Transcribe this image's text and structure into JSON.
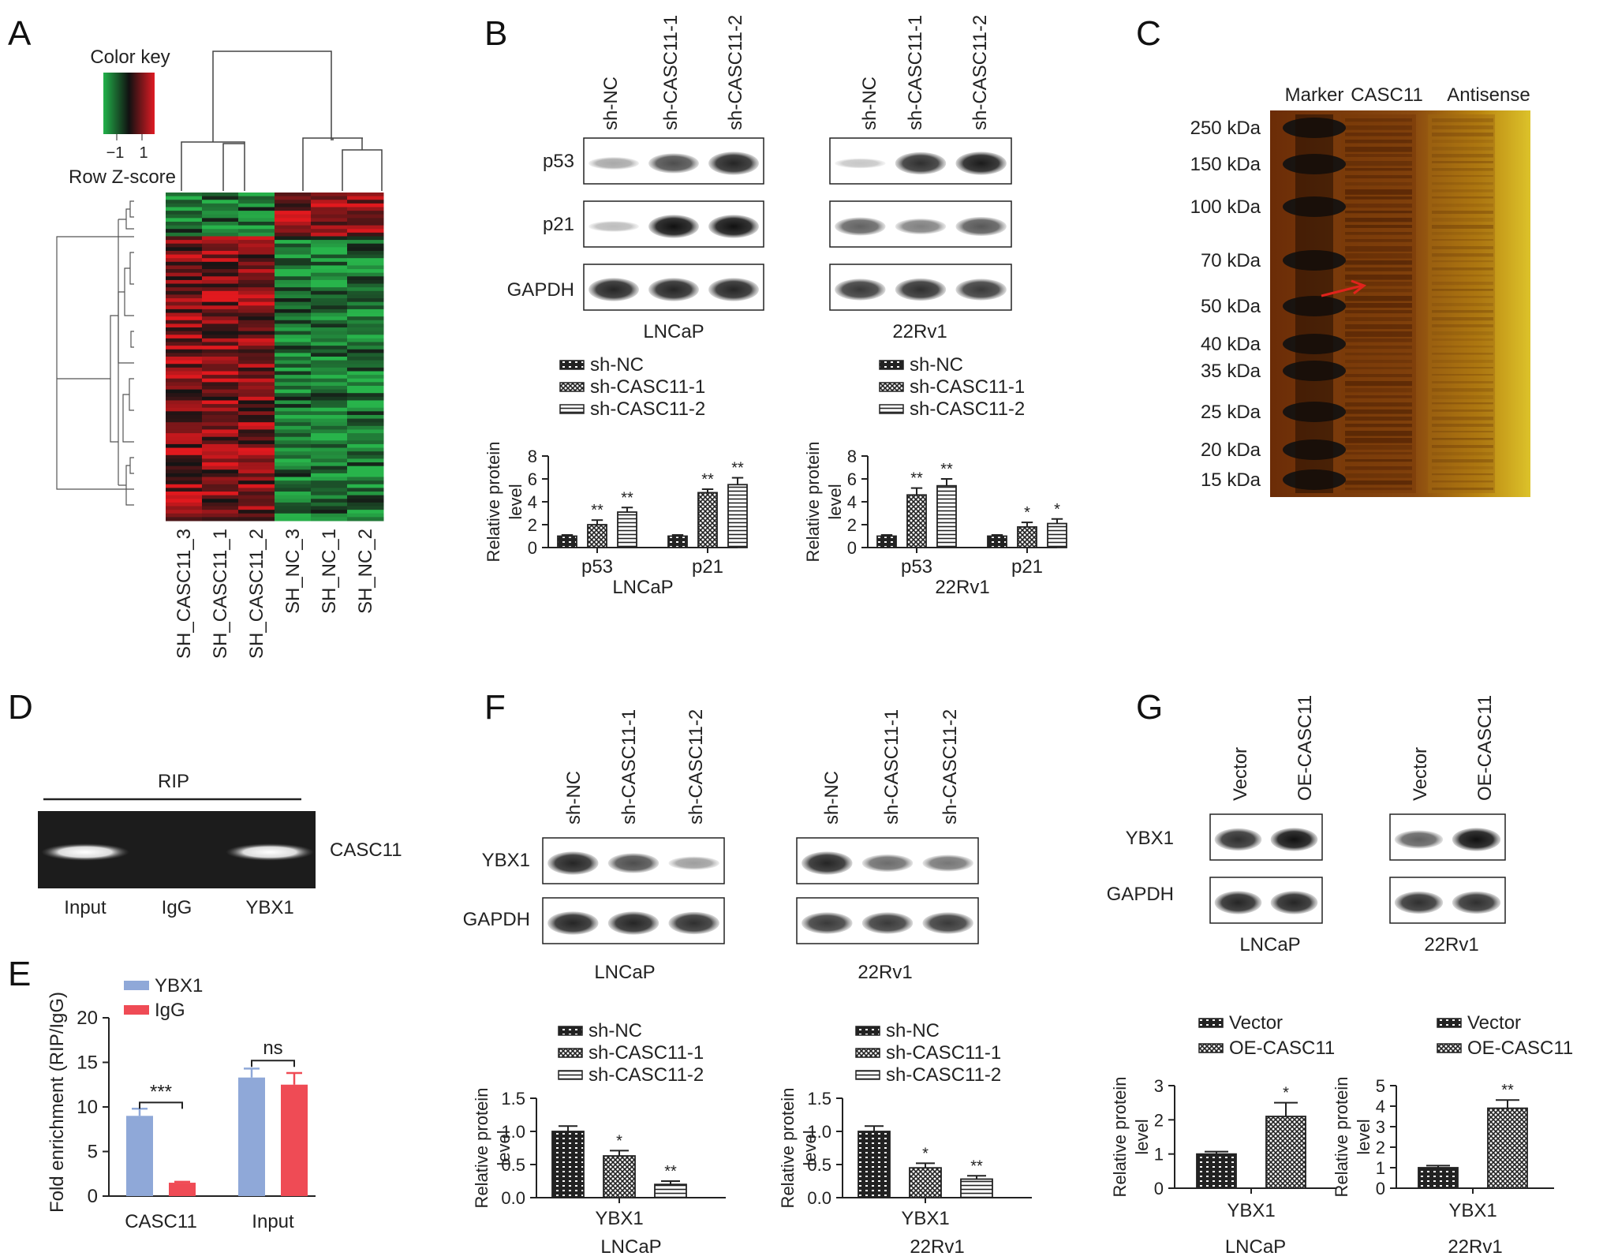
{
  "panels": {
    "A": {
      "letter": "A",
      "color_key_title": "Color key",
      "color_key_ticks": [
        "−1",
        "1"
      ],
      "color_key_label": "Row Z-score",
      "samples": [
        "SH_CASC11_3",
        "SH_CASC11_1",
        "SH_CASC11_2",
        "SH_NC_3",
        "SH_NC_1",
        "SH_NC_2"
      ],
      "colors": {
        "low": "#22b24a",
        "mid": "#111111",
        "high": "#e01b24"
      }
    },
    "B": {
      "letter": "B",
      "lanes": [
        "sh-NC",
        "sh-CASC11-1",
        "sh-CASC11-2"
      ],
      "proteins": [
        "p53",
        "p21",
        "GAPDH"
      ],
      "cell_lines": [
        "LNCaP",
        "22Rv1"
      ],
      "legend": [
        "sh-NC",
        "sh-CASC11-1",
        "sh-CASC11-2"
      ],
      "ylabel": "Relative protein level",
      "yticks": [
        "0",
        "2",
        "4",
        "6",
        "8"
      ]
    },
    "C": {
      "letter": "C",
      "lane_labels": [
        "Marker",
        "CASC11",
        "Antisense"
      ],
      "markers": [
        "250 kDa",
        "150 kDa",
        "100 kDa",
        "70 kDa",
        "50 kDa",
        "40 kDa",
        "35 kDa",
        "25 kDa",
        "20 kDa",
        "15 kDa"
      ]
    },
    "D": {
      "letter": "D",
      "title": "RIP",
      "right_label": "CASC11",
      "lanes": [
        "Input",
        "IgG",
        "YBX1"
      ]
    },
    "E": {
      "letter": "E",
      "legend": [
        "YBX1",
        "IgG"
      ],
      "colors": {
        "YBX1": "#8fa8d8",
        "IgG": "#ef4b55"
      },
      "ylabel": "Fold enrichment (RIP/IgG)",
      "yticks": [
        "0",
        "5",
        "10",
        "15",
        "20"
      ],
      "categories": [
        "CASC11",
        "Input"
      ],
      "sig": [
        "***",
        "ns"
      ]
    },
    "F": {
      "letter": "F",
      "lanes": [
        "sh-NC",
        "sh-CASC11-1",
        "sh-CASC11-2"
      ],
      "proteins": [
        "YBX1",
        "GAPDH"
      ],
      "cell_lines": [
        "LNCaP",
        "22Rv1"
      ],
      "legend": [
        "sh-NC",
        "sh-CASC11-1",
        "sh-CASC11-2"
      ],
      "ylabel": "Relative protein level",
      "yticks": [
        "0.0",
        "0.5",
        "1.0",
        "1.5"
      ],
      "xcat": "YBX1"
    },
    "G": {
      "letter": "G",
      "lanes": [
        "Vector",
        "OE-CASC11"
      ],
      "proteins": [
        "YBX1",
        "GAPDH"
      ],
      "cell_lines": [
        "LNCaP",
        "22Rv1"
      ],
      "legend": [
        "Vector",
        "OE-CASC11"
      ],
      "ylabel": "Relative protein level",
      "yticks_left": [
        "0",
        "1",
        "2",
        "3"
      ],
      "yticks_right": [
        "0",
        "1",
        "2",
        "3",
        "4",
        "5"
      ],
      "xcat": "YBX1"
    }
  },
  "chart_data": [
    {
      "type": "bar",
      "panel": "B-LNCaP",
      "categories": [
        "p53",
        "p21"
      ],
      "xlabel": "LNCaP",
      "ylabel": "Relative protein level",
      "ylim": [
        0,
        8
      ],
      "series": [
        {
          "name": "sh-NC",
          "values": [
            1.0,
            1.0
          ],
          "err": [
            0.1,
            0.1
          ],
          "sig": [
            "",
            ""
          ]
        },
        {
          "name": "sh-CASC11-1",
          "values": [
            2.0,
            4.8
          ],
          "err": [
            0.4,
            0.3
          ],
          "sig": [
            "**",
            "**"
          ]
        },
        {
          "name": "sh-CASC11-2",
          "values": [
            3.1,
            5.5
          ],
          "err": [
            0.4,
            0.6
          ],
          "sig": [
            "**",
            "**"
          ]
        }
      ]
    },
    {
      "type": "bar",
      "panel": "B-22Rv1",
      "categories": [
        "p53",
        "p21"
      ],
      "xlabel": "22Rv1",
      "ylabel": "Relative protein level",
      "ylim": [
        0,
        8
      ],
      "series": [
        {
          "name": "sh-NC",
          "values": [
            1.0,
            1.0
          ],
          "err": [
            0.1,
            0.1
          ],
          "sig": [
            "",
            ""
          ]
        },
        {
          "name": "sh-CASC11-1",
          "values": [
            4.6,
            1.8
          ],
          "err": [
            0.6,
            0.4
          ],
          "sig": [
            "**",
            "*"
          ]
        },
        {
          "name": "sh-CASC11-2",
          "values": [
            5.4,
            2.1
          ],
          "err": [
            0.6,
            0.4
          ],
          "sig": [
            "**",
            "*"
          ]
        }
      ]
    },
    {
      "type": "bar",
      "panel": "E",
      "categories": [
        "CASC11",
        "Input"
      ],
      "ylabel": "Fold enrichment (RIP/IgG)",
      "ylim": [
        0,
        20
      ],
      "series": [
        {
          "name": "YBX1",
          "values": [
            9.0,
            13.3
          ],
          "err": [
            0.8,
            1.0
          ]
        },
        {
          "name": "IgG",
          "values": [
            1.5,
            12.5
          ],
          "err": [
            0.1,
            1.3
          ]
        }
      ]
    },
    {
      "type": "bar",
      "panel": "F-LNCaP",
      "categories": [
        "YBX1"
      ],
      "xlabel": "LNCaP",
      "ylabel": "Relative protein level",
      "ylim": [
        0,
        1.5
      ],
      "series": [
        {
          "name": "sh-NC",
          "values": [
            1.0
          ],
          "err": [
            0.08
          ],
          "sig": [
            ""
          ]
        },
        {
          "name": "sh-CASC11-1",
          "values": [
            0.63
          ],
          "err": [
            0.08
          ],
          "sig": [
            "*"
          ]
        },
        {
          "name": "sh-CASC11-2",
          "values": [
            0.2
          ],
          "err": [
            0.05
          ],
          "sig": [
            "**"
          ]
        }
      ]
    },
    {
      "type": "bar",
      "panel": "F-22Rv1",
      "categories": [
        "YBX1"
      ],
      "xlabel": "22Rv1",
      "ylabel": "Relative protein level",
      "ylim": [
        0,
        1.5
      ],
      "series": [
        {
          "name": "sh-NC",
          "values": [
            1.0
          ],
          "err": [
            0.08
          ],
          "sig": [
            ""
          ]
        },
        {
          "name": "sh-CASC11-1",
          "values": [
            0.45
          ],
          "err": [
            0.07
          ],
          "sig": [
            "*"
          ]
        },
        {
          "name": "sh-CASC11-2",
          "values": [
            0.28
          ],
          "err": [
            0.05
          ],
          "sig": [
            "**"
          ]
        }
      ]
    },
    {
      "type": "bar",
      "panel": "G-LNCaP",
      "categories": [
        "YBX1"
      ],
      "xlabel": "LNCaP",
      "ylabel": "Relative protein level",
      "ylim": [
        0,
        3
      ],
      "series": [
        {
          "name": "Vector",
          "values": [
            1.0
          ],
          "err": [
            0.07
          ],
          "sig": [
            ""
          ]
        },
        {
          "name": "OE-CASC11",
          "values": [
            2.1
          ],
          "err": [
            0.4
          ],
          "sig": [
            "*"
          ]
        }
      ]
    },
    {
      "type": "bar",
      "panel": "G-22Rv1",
      "categories": [
        "YBX1"
      ],
      "xlabel": "22Rv1",
      "ylabel": "Relative protein level",
      "ylim": [
        0,
        5
      ],
      "series": [
        {
          "name": "Vector",
          "values": [
            1.0
          ],
          "err": [
            0.1
          ],
          "sig": [
            ""
          ]
        },
        {
          "name": "OE-CASC11",
          "values": [
            3.9
          ],
          "err": [
            0.4
          ],
          "sig": [
            "**"
          ]
        }
      ]
    }
  ]
}
